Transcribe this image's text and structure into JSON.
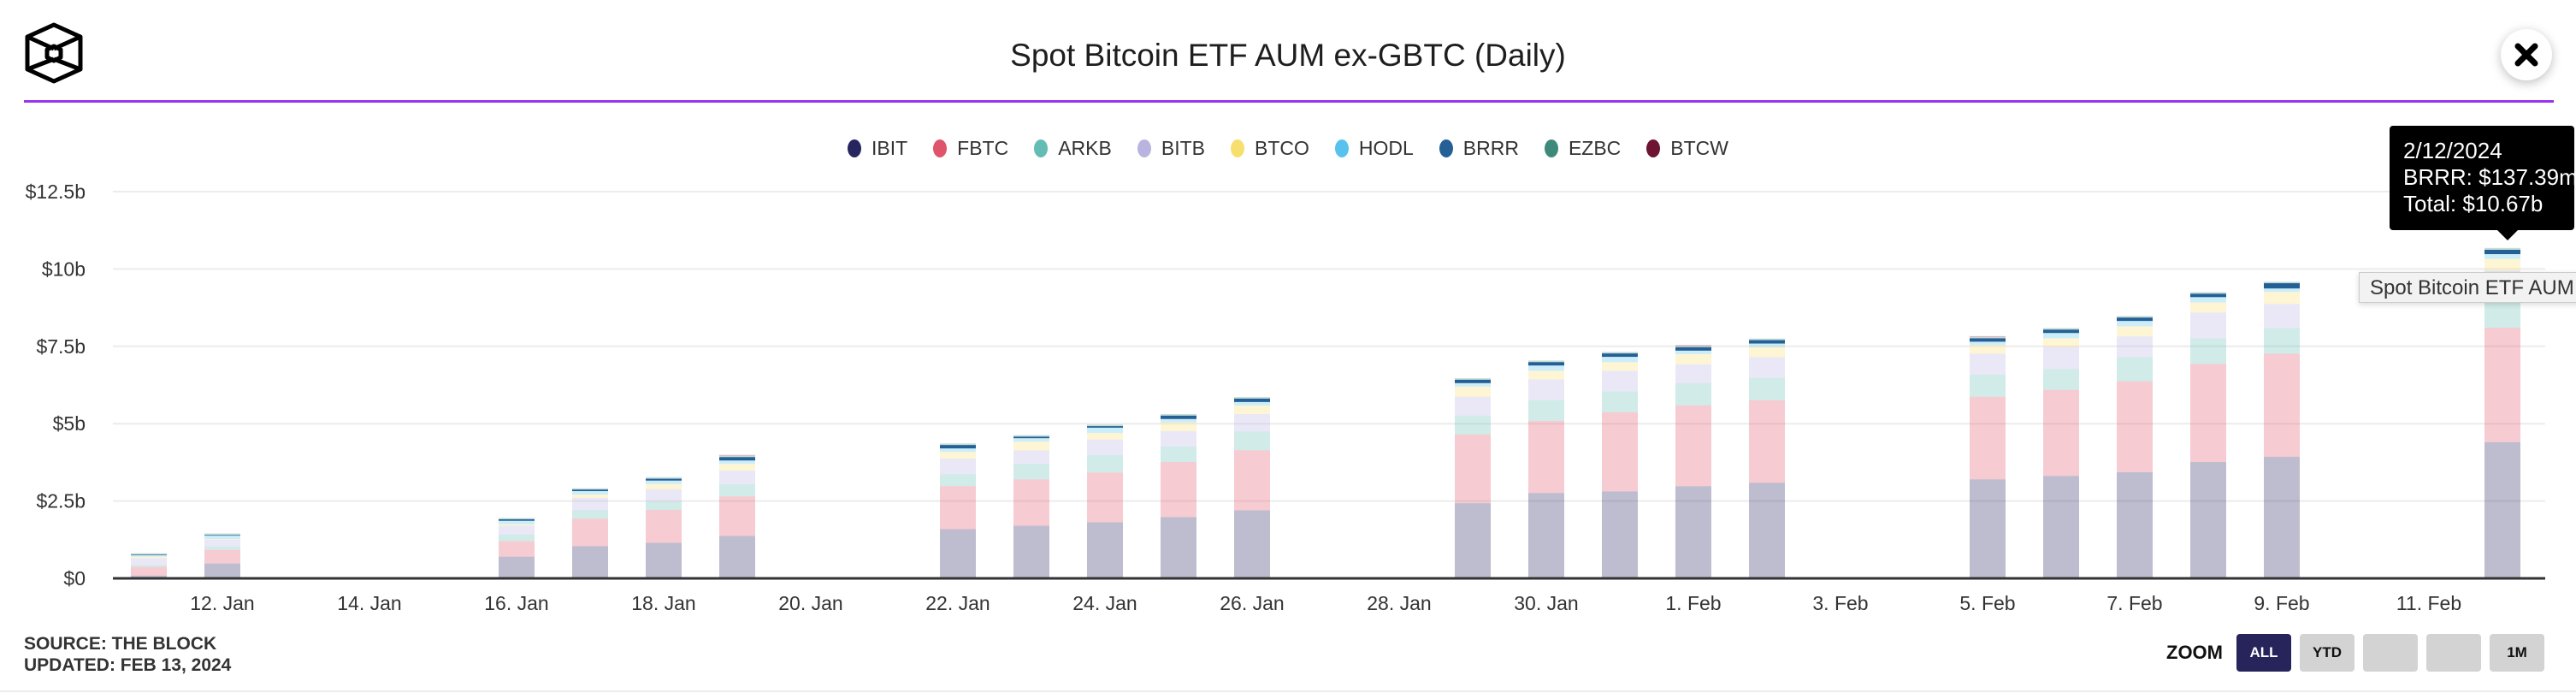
{
  "header": {
    "title": "Spot Bitcoin ETF AUM ex-GBTC (Daily)",
    "logo_icon": "the-block-cube-logo",
    "close_icon": "close-x-icon"
  },
  "footer": {
    "source": "SOURCE: THE BLOCK",
    "updated": "UPDATED: FEB 13, 2024"
  },
  "zoom": {
    "label": "ZOOM",
    "buttons": [
      {
        "label": "ALL",
        "active": true
      },
      {
        "label": "YTD",
        "active": false
      },
      {
        "label": "",
        "active": false
      },
      {
        "label": "",
        "active": false
      },
      {
        "label": "1M",
        "active": false
      }
    ]
  },
  "tooltip": {
    "date": "2/12/2024",
    "series_line": "BRRR: $137.39m",
    "total_line": "Total: $10.67b"
  },
  "native_tooltip": "Spot Bitcoin ETF AUM ex-GBTC (Daily)",
  "chart_data": {
    "type": "bar",
    "stacked": true,
    "title": "Spot Bitcoin ETF AUM ex-GBTC (Daily)",
    "ylim": [
      0,
      12.5
    ],
    "yunit": "billion USD",
    "y_ticks": [
      "$0",
      "$2.5b",
      "$5b",
      "$7.5b",
      "$10b",
      "$12.5b"
    ],
    "y_tick_values": [
      0,
      2.5,
      5,
      7.5,
      10,
      12.5
    ],
    "x_ticks": [
      "12. Jan",
      "14. Jan",
      "16. Jan",
      "18. Jan",
      "20. Jan",
      "22. Jan",
      "24. Jan",
      "26. Jan",
      "28. Jan",
      "30. Jan",
      "1. Feb",
      "3. Feb",
      "5. Feb",
      "7. Feb",
      "9. Feb",
      "11. Feb"
    ],
    "x_tick_dates": [
      "2024-01-12",
      "2024-01-14",
      "2024-01-16",
      "2024-01-18",
      "2024-01-20",
      "2024-01-22",
      "2024-01-24",
      "2024-01-26",
      "2024-01-28",
      "2024-01-30",
      "2024-02-01",
      "2024-02-03",
      "2024-02-05",
      "2024-02-07",
      "2024-02-09",
      "2024-02-11"
    ],
    "grid": true,
    "legend_position": "top",
    "highlighted_series": "BRRR",
    "categories": [
      "2024-01-11",
      "2024-01-12",
      "2024-01-16",
      "2024-01-17",
      "2024-01-18",
      "2024-01-19",
      "2024-01-22",
      "2024-01-23",
      "2024-01-24",
      "2024-01-25",
      "2024-01-26",
      "2024-01-29",
      "2024-01-30",
      "2024-01-31",
      "2024-02-01",
      "2024-02-02",
      "2024-02-05",
      "2024-02-06",
      "2024-02-07",
      "2024-02-08",
      "2024-02-09",
      "2024-02-12"
    ],
    "series": [
      {
        "name": "IBIT",
        "color": "#262560",
        "values": [
          0.09,
          0.48,
          0.7,
          1.04,
          1.15,
          1.37,
          1.59,
          1.7,
          1.81,
          1.98,
          2.2,
          2.43,
          2.76,
          2.81,
          2.98,
          3.09,
          3.2,
          3.31,
          3.43,
          3.76,
          3.93,
          4.4
        ]
      },
      {
        "name": "FBTC",
        "color": "#E0546B",
        "values": [
          0.28,
          0.44,
          0.5,
          0.89,
          1.06,
          1.28,
          1.39,
          1.5,
          1.61,
          1.78,
          1.94,
          2.22,
          2.33,
          2.56,
          2.61,
          2.67,
          2.67,
          2.78,
          2.94,
          3.17,
          3.33,
          3.7
        ]
      },
      {
        "name": "ARKB",
        "color": "#63BDB3",
        "values": [
          0.06,
          0.11,
          0.22,
          0.28,
          0.28,
          0.39,
          0.39,
          0.5,
          0.56,
          0.5,
          0.61,
          0.61,
          0.67,
          0.67,
          0.72,
          0.72,
          0.72,
          0.67,
          0.78,
          0.83,
          0.83,
          0.9
        ]
      },
      {
        "name": "BITB",
        "color": "#B9B3E0",
        "values": [
          0.22,
          0.22,
          0.28,
          0.39,
          0.39,
          0.44,
          0.5,
          0.44,
          0.5,
          0.5,
          0.56,
          0.61,
          0.67,
          0.67,
          0.61,
          0.67,
          0.67,
          0.72,
          0.67,
          0.83,
          0.78,
          0.95
        ]
      },
      {
        "name": "BTCO",
        "color": "#F7DF6E",
        "values": [
          0.05,
          0.02,
          0.05,
          0.11,
          0.17,
          0.22,
          0.22,
          0.28,
          0.22,
          0.28,
          0.28,
          0.33,
          0.28,
          0.28,
          0.33,
          0.33,
          0.28,
          0.28,
          0.33,
          0.33,
          0.39,
          0.38
        ]
      },
      {
        "name": "HODL",
        "color": "#57C2EE",
        "values": [
          0.05,
          0.11,
          0.11,
          0.11,
          0.11,
          0.11,
          0.11,
          0.11,
          0.17,
          0.11,
          0.11,
          0.11,
          0.17,
          0.17,
          0.11,
          0.11,
          0.11,
          0.17,
          0.17,
          0.17,
          0.11,
          0.15
        ]
      },
      {
        "name": "BRRR",
        "color": "#246096",
        "values": [
          0.02,
          0.02,
          0.05,
          0.05,
          0.06,
          0.11,
          0.11,
          0.05,
          0.05,
          0.11,
          0.11,
          0.11,
          0.11,
          0.11,
          0.11,
          0.11,
          0.11,
          0.11,
          0.11,
          0.11,
          0.17,
          0.14
        ]
      },
      {
        "name": "EZBC",
        "color": "#3D8A7B",
        "values": [
          0.04,
          0.05,
          0.04,
          0.04,
          0.05,
          0.04,
          0.05,
          0.05,
          0.05,
          0.05,
          0.05,
          0.05,
          0.05,
          0.05,
          0.03,
          0.05,
          0.03,
          0.05,
          0.05,
          0.05,
          0.05,
          0.06
        ]
      },
      {
        "name": "BTCW",
        "color": "#6D1433",
        "values": [
          0,
          0,
          0,
          0,
          0,
          0.03,
          0,
          0,
          0,
          0,
          0,
          0,
          0,
          0,
          0.04,
          0,
          0.04,
          0,
          0,
          0,
          0,
          0
        ]
      }
    ]
  }
}
